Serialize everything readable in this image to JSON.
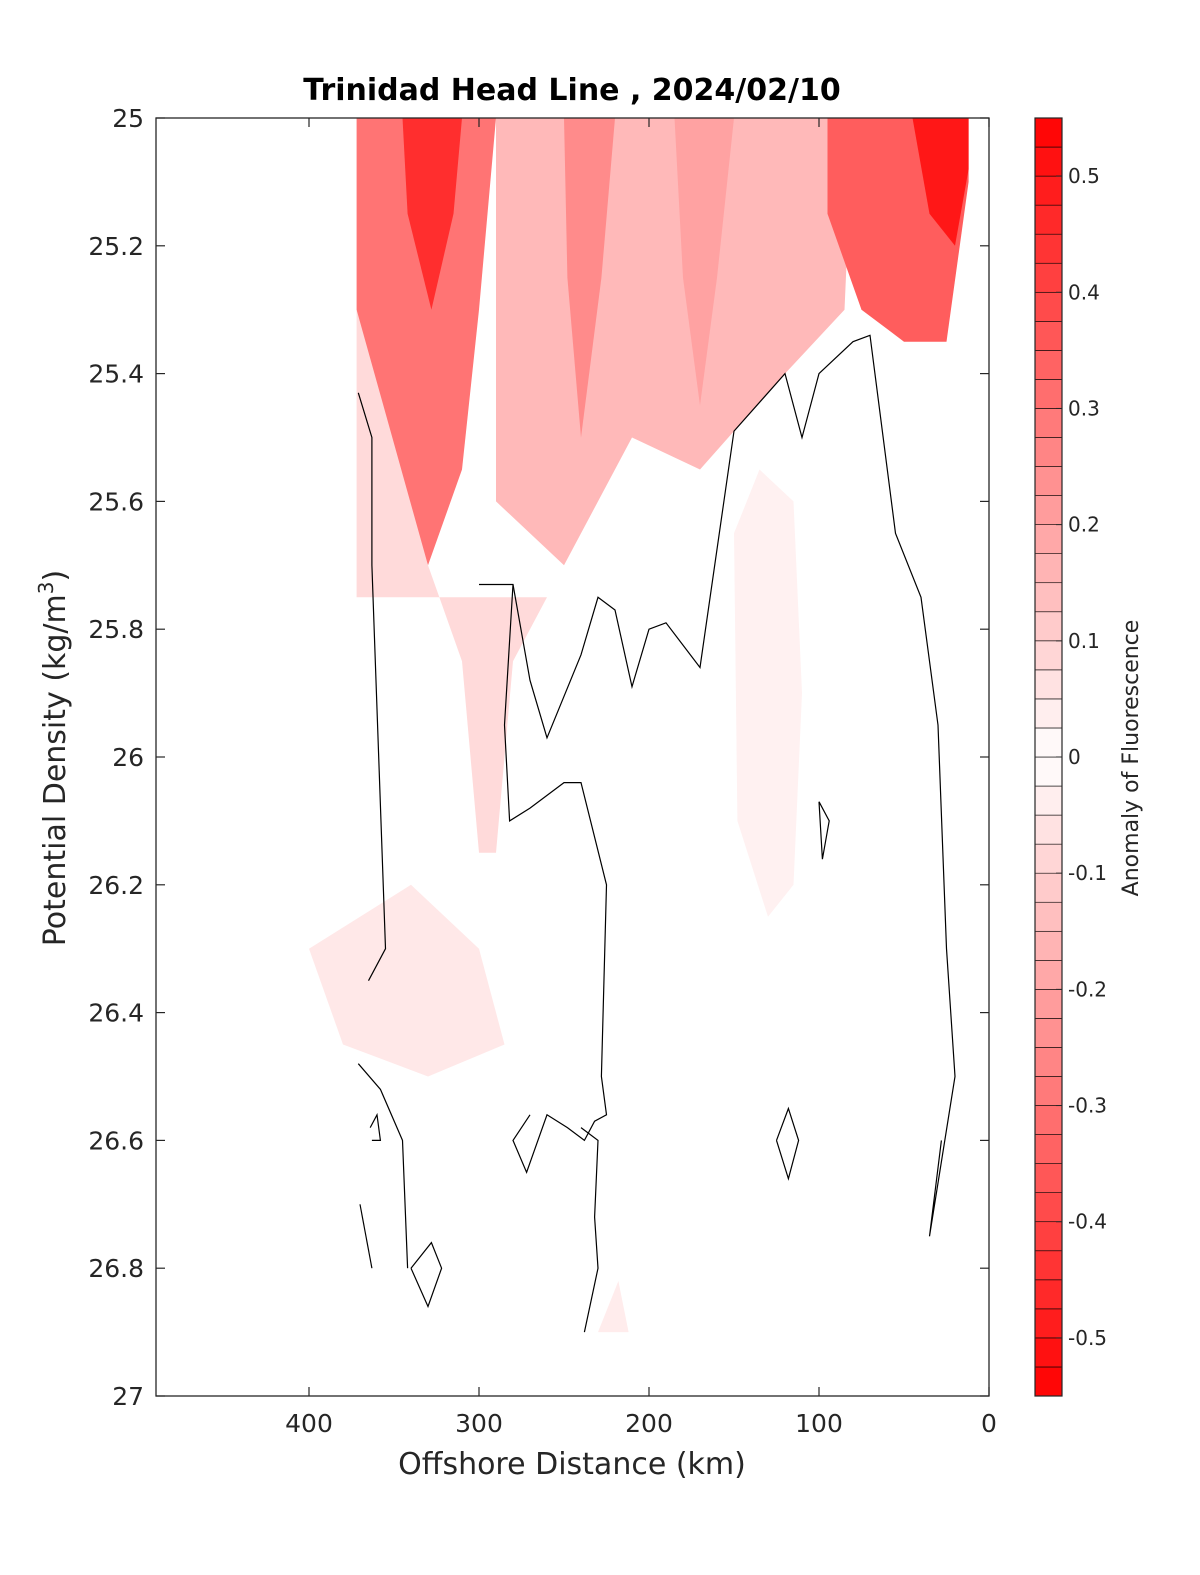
{
  "chart_data": {
    "type": "contour",
    "title": "Trinidad Head Line , 2024/02/10",
    "xlabel": "Offshore Distance (km)",
    "ylabel_main": "Potential Density (kg/m",
    "ylabel_sup": "3",
    "ylabel_close": ")",
    "x_reversed": true,
    "xlim": [
      0,
      490
    ],
    "ylim": [
      25,
      27
    ],
    "y_reversed": true,
    "xticks": [
      {
        "value": 400,
        "label": "400"
      },
      {
        "value": 300,
        "label": "300"
      },
      {
        "value": 200,
        "label": "200"
      },
      {
        "value": 100,
        "label": "100"
      },
      {
        "value": 0,
        "label": "0"
      }
    ],
    "yticks": [
      {
        "value": 25,
        "label": "25"
      },
      {
        "value": 25.2,
        "label": "25.2"
      },
      {
        "value": 25.4,
        "label": "25.4"
      },
      {
        "value": 25.6,
        "label": "25.6"
      },
      {
        "value": 25.8,
        "label": "25.8"
      },
      {
        "value": 26,
        "label": "26"
      },
      {
        "value": 26.2,
        "label": "26.2"
      },
      {
        "value": 26.4,
        "label": "26.4"
      },
      {
        "value": 26.6,
        "label": "26.6"
      },
      {
        "value": 26.8,
        "label": "26.8"
      },
      {
        "value": 27,
        "label": "27"
      }
    ],
    "colorbar": {
      "label": "Anomaly of Fluorescence",
      "clim": [
        -0.55,
        0.55
      ],
      "levels": 44,
      "low_color": "#0000ff",
      "zero_color": "#ffffff",
      "high_color": "#ff0000",
      "ticks": [
        {
          "value": 0.5,
          "label": "0.5"
        },
        {
          "value": 0.4,
          "label": "0.4"
        },
        {
          "value": 0.3,
          "label": "0.3"
        },
        {
          "value": 0.2,
          "label": "0.2"
        },
        {
          "value": 0.1,
          "label": "0.1"
        },
        {
          "value": 0,
          "label": "0"
        },
        {
          "value": -0.1,
          "label": "-0.1"
        },
        {
          "value": -0.2,
          "label": "-0.2"
        },
        {
          "value": -0.3,
          "label": "-0.3"
        },
        {
          "value": -0.4,
          "label": "-0.4"
        },
        {
          "value": -0.5,
          "label": "-0.5"
        }
      ]
    },
    "data_extent": {
      "x_min": 12,
      "x_max": 371,
      "y_min": 25,
      "y_max": 26.9
    },
    "anomaly_regions": [
      {
        "name": "blue-core-330km",
        "level": -0.3,
        "points": [
          [
            372,
            25
          ],
          [
            290,
            25
          ],
          [
            300,
            25.3
          ],
          [
            310,
            25.55
          ],
          [
            330,
            25.7
          ],
          [
            360,
            25.5
          ],
          [
            372,
            25.3
          ]
        ]
      },
      {
        "name": "blue-core-330km-inner",
        "level": -0.45,
        "points": [
          [
            345,
            25
          ],
          [
            310,
            25
          ],
          [
            315,
            25.15
          ],
          [
            328,
            25.3
          ],
          [
            342,
            25.15
          ]
        ]
      },
      {
        "name": "blue-cap-260-130km",
        "level": -0.15,
        "points": [
          [
            290,
            25
          ],
          [
            80,
            25
          ],
          [
            85,
            25.3
          ],
          [
            120,
            25.4
          ],
          [
            170,
            25.55
          ],
          [
            210,
            25.5
          ],
          [
            250,
            25.7
          ],
          [
            290,
            25.6
          ]
        ]
      },
      {
        "name": "blue-streak-240km",
        "level": -0.25,
        "points": [
          [
            250,
            25
          ],
          [
            220,
            25
          ],
          [
            228,
            25.25
          ],
          [
            240,
            25.5
          ],
          [
            248,
            25.25
          ]
        ]
      },
      {
        "name": "blue-streak-170km",
        "level": -0.2,
        "points": [
          [
            185,
            25
          ],
          [
            150,
            25
          ],
          [
            160,
            25.25
          ],
          [
            170,
            25.45
          ],
          [
            180,
            25.25
          ]
        ]
      },
      {
        "name": "blue-core-30km",
        "level": -0.35,
        "points": [
          [
            95,
            25
          ],
          [
            12,
            25
          ],
          [
            12,
            25.1
          ],
          [
            25,
            25.35
          ],
          [
            50,
            25.35
          ],
          [
            75,
            25.3
          ],
          [
            95,
            25.15
          ]
        ]
      },
      {
        "name": "blue-core-30km-inner",
        "level": -0.5,
        "points": [
          [
            45,
            25
          ],
          [
            12,
            25
          ],
          [
            12,
            25.08
          ],
          [
            20,
            25.2
          ],
          [
            35,
            25.15
          ]
        ]
      },
      {
        "name": "blue-tongue-300km",
        "level": -0.08,
        "points": [
          [
            372,
            25.3
          ],
          [
            330,
            25.7
          ],
          [
            310,
            25.85
          ],
          [
            300,
            26.15
          ],
          [
            290,
            26.15
          ],
          [
            280,
            25.85
          ],
          [
            260,
            25.75
          ],
          [
            372,
            25.75
          ]
        ]
      },
      {
        "name": "blue-patch-310km",
        "level": -0.05,
        "points": [
          [
            400,
            26.3
          ],
          [
            340,
            26.2
          ],
          [
            300,
            26.3
          ],
          [
            285,
            26.45
          ],
          [
            330,
            26.5
          ],
          [
            380,
            26.45
          ]
        ]
      },
      {
        "name": "red-patch-130km",
        "level": 0.03,
        "points": [
          [
            150,
            25.65
          ],
          [
            135,
            25.55
          ],
          [
            115,
            25.6
          ],
          [
            110,
            25.9
          ],
          [
            115,
            26.2
          ],
          [
            130,
            26.25
          ],
          [
            148,
            26.1
          ]
        ]
      },
      {
        "name": "red-patch-220km",
        "level": 0.04,
        "points": [
          [
            230,
            26.9
          ],
          [
            212,
            26.9
          ],
          [
            218,
            26.82
          ]
        ]
      }
    ],
    "zero_contours": [
      [
        [
          371,
          25.43
        ],
        [
          363,
          25.5
        ],
        [
          363,
          25.7
        ],
        [
          355,
          26.3
        ],
        [
          365,
          26.35
        ]
      ],
      [
        [
          371,
          26.48
        ],
        [
          358,
          26.52
        ],
        [
          345,
          26.6
        ],
        [
          342,
          26.8
        ]
      ],
      [
        [
          370,
          26.7
        ],
        [
          363,
          26.8
        ]
      ],
      [
        [
          364,
          26.58
        ],
        [
          360,
          26.56
        ],
        [
          358,
          26.6
        ],
        [
          363,
          26.6
        ]
      ],
      [
        [
          340,
          26.8
        ],
        [
          328,
          26.76
        ],
        [
          322,
          26.8
        ],
        [
          330,
          26.86
        ],
        [
          340,
          26.8
        ]
      ],
      [
        [
          300,
          25.73
        ],
        [
          280,
          25.73
        ],
        [
          270,
          25.88
        ],
        [
          260,
          25.97
        ],
        [
          240,
          25.84
        ],
        [
          230,
          25.75
        ],
        [
          220,
          25.77
        ],
        [
          210,
          25.89
        ],
        [
          200,
          25.8
        ],
        [
          190,
          25.79
        ],
        [
          170,
          25.86
        ],
        [
          150,
          25.49
        ],
        [
          130,
          25.43
        ],
        [
          120,
          25.4
        ],
        [
          110,
          25.5
        ],
        [
          100,
          25.4
        ],
        [
          80,
          25.35
        ],
        [
          70,
          25.34
        ],
        [
          55,
          25.65
        ],
        [
          40,
          25.75
        ],
        [
          30,
          25.95
        ],
        [
          25,
          26.3
        ],
        [
          20,
          26.5
        ],
        [
          35,
          26.75
        ],
        [
          28,
          26.6
        ]
      ],
      [
        [
          280,
          25.73
        ],
        [
          285,
          25.95
        ],
        [
          282,
          26.1
        ],
        [
          270,
          26.08
        ],
        [
          250,
          26.04
        ],
        [
          240,
          26.04
        ],
        [
          225,
          26.2
        ],
        [
          228,
          26.5
        ],
        [
          225,
          26.56
        ],
        [
          232,
          26.57
        ],
        [
          238,
          26.6
        ],
        [
          248,
          26.58
        ],
        [
          260,
          26.56
        ],
        [
          272,
          26.65
        ],
        [
          280,
          26.6
        ],
        [
          270,
          26.56
        ]
      ],
      [
        [
          240,
          26.58
        ],
        [
          230,
          26.6
        ],
        [
          232,
          26.72
        ],
        [
          230,
          26.8
        ],
        [
          238,
          26.9
        ]
      ],
      [
        [
          100,
          26.07
        ],
        [
          94,
          26.1
        ],
        [
          98,
          26.16
        ],
        [
          100,
          26.07
        ]
      ],
      [
        [
          125,
          26.6
        ],
        [
          118,
          26.55
        ],
        [
          112,
          26.6
        ],
        [
          118,
          26.66
        ],
        [
          125,
          26.6
        ]
      ]
    ]
  }
}
